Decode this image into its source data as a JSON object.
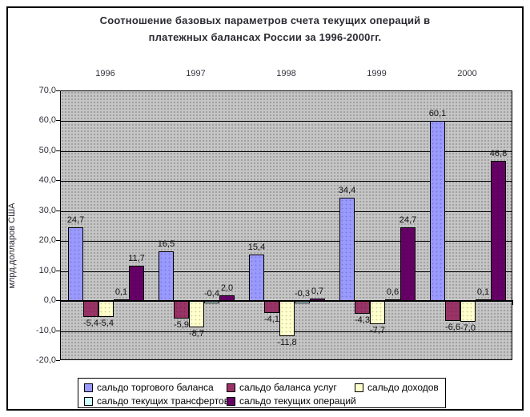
{
  "title": {
    "line1": "Соотношение базовых параметров счета текущих операций в",
    "line2": "платежных балансах России за 1996-2000гг.",
    "color": "#2b2b33"
  },
  "chart_data": {
    "type": "bar",
    "title": "Соотношение базовых параметров счета текущих операций в платежных балансах России за 1996-2000гг.",
    "categories": [
      "1996",
      "1997",
      "1998",
      "1999",
      "2000"
    ],
    "series": [
      {
        "name": "сальдо торгового баланса",
        "color": "#9999FF",
        "values": [
          24.7,
          16.5,
          15.4,
          34.4,
          60.1
        ]
      },
      {
        "name": "сальдо баланса услуг",
        "color": "#993366",
        "values": [
          -5.4,
          -5.9,
          -4.1,
          -4.3,
          -6.6
        ]
      },
      {
        "name": "сальдо доходов",
        "color": "#FFFFCC",
        "values": [
          -5.4,
          -8.7,
          -11.8,
          -7.7,
          -7.0
        ]
      },
      {
        "name": "сальдо текущих трансфертов",
        "color": "#CCFFFF",
        "values": [
          0.1,
          -0.4,
          -0.3,
          0.6,
          0.1
        ]
      },
      {
        "name": "сальдо текущих операций",
        "color": "#660066",
        "values": [
          11.7,
          2.0,
          0.7,
          24.7,
          46.8
        ]
      }
    ],
    "xlabel": "",
    "ylabel": "млрд.долларов США",
    "ylim": [
      -20,
      70
    ],
    "ytick_step": 10,
    "y_tick_labels": [
      "70,0",
      "60,0",
      "50,0",
      "40,0",
      "30,0",
      "20,0",
      "10,0",
      "0,0",
      "-10,0",
      "-20,0"
    ],
    "decimal_separator": ",",
    "grid": true,
    "plot_bg": "#c5c5c5",
    "legend_position": "bottom"
  }
}
